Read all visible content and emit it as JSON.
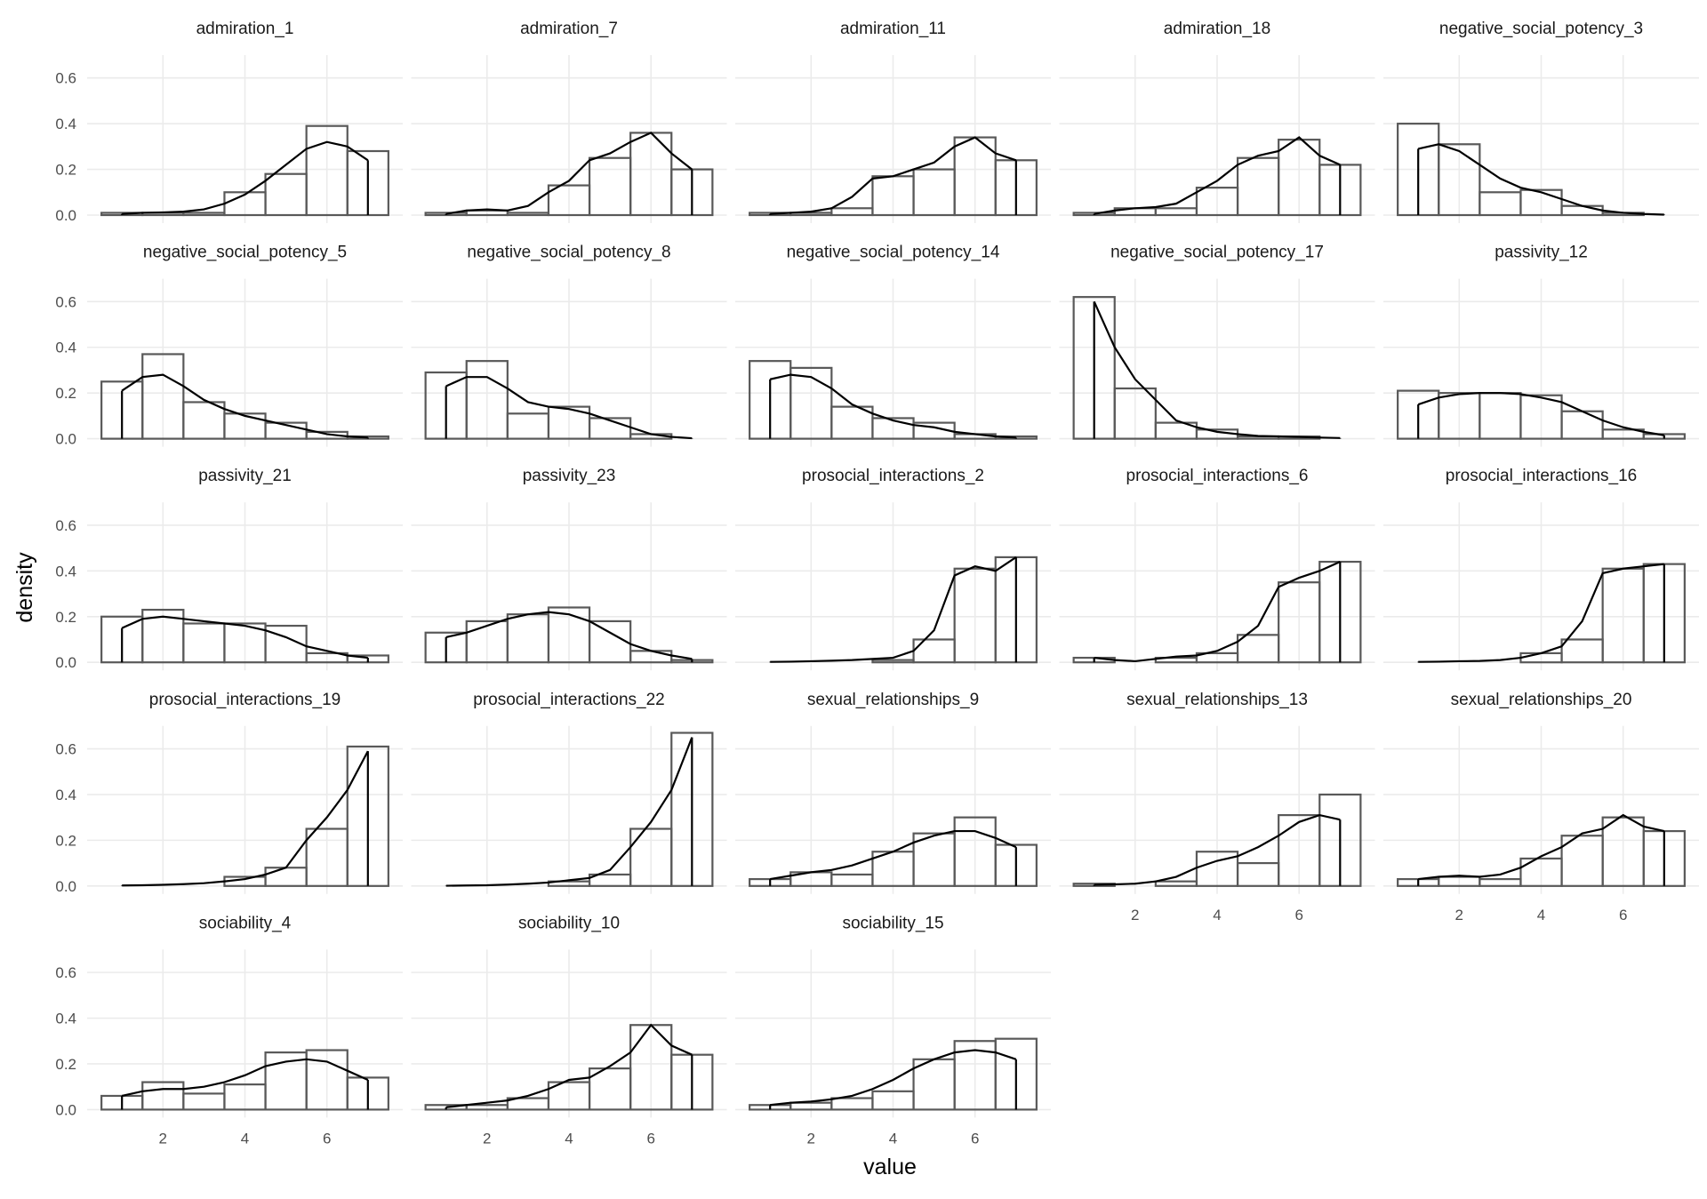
{
  "chart_data": {
    "type": "histogram",
    "xlabel": "value",
    "ylabel": "density",
    "xlim": [
      0.15,
      7.85
    ],
    "ylim": [
      -0.035,
      0.7
    ],
    "xticks": [
      2,
      4,
      6
    ],
    "yticks": [
      0.0,
      0.2,
      0.4,
      0.6
    ],
    "grid": true,
    "bar_color": "#595959",
    "line_color": "#000000",
    "bins": [
      0.5,
      1.5,
      2.5,
      3.5,
      4.5,
      5.5,
      6.5,
      7.5
    ],
    "density_x": [
      1,
      1.5,
      2,
      2.5,
      3,
      3.5,
      4,
      4.5,
      5,
      5.5,
      6,
      6.5,
      7
    ],
    "panels": [
      {
        "title": "admiration_1",
        "values": [
          0.01,
          0.01,
          0.01,
          0.1,
          0.18,
          0.39,
          0.28
        ],
        "density": [
          0.005,
          0.01,
          0.012,
          0.015,
          0.025,
          0.05,
          0.09,
          0.15,
          0.22,
          0.29,
          0.32,
          0.3,
          0.24
        ]
      },
      {
        "title": "admiration_7",
        "values": [
          0.01,
          0.02,
          0.01,
          0.13,
          0.25,
          0.36,
          0.2
        ],
        "density": [
          0.005,
          0.02,
          0.025,
          0.02,
          0.04,
          0.1,
          0.15,
          0.24,
          0.27,
          0.32,
          0.36,
          0.27,
          0.2
        ]
      },
      {
        "title": "admiration_11",
        "values": [
          0.01,
          0.01,
          0.03,
          0.17,
          0.2,
          0.34,
          0.24
        ],
        "density": [
          0.005,
          0.01,
          0.015,
          0.03,
          0.08,
          0.16,
          0.17,
          0.2,
          0.23,
          0.3,
          0.34,
          0.27,
          0.24
        ]
      },
      {
        "title": "admiration_18",
        "values": [
          0.01,
          0.03,
          0.03,
          0.12,
          0.25,
          0.33,
          0.22
        ],
        "density": [
          0.005,
          0.02,
          0.03,
          0.035,
          0.05,
          0.1,
          0.15,
          0.22,
          0.26,
          0.28,
          0.34,
          0.26,
          0.22
        ]
      },
      {
        "title": "negative_social_potency_3",
        "values": [
          0.4,
          0.31,
          0.1,
          0.11,
          0.04,
          0.01,
          0.0
        ],
        "density": [
          0.29,
          0.31,
          0.28,
          0.22,
          0.16,
          0.12,
          0.1,
          0.07,
          0.04,
          0.02,
          0.01,
          0.005,
          0.002
        ]
      },
      {
        "title": "negative_social_potency_5",
        "values": [
          0.25,
          0.37,
          0.16,
          0.11,
          0.07,
          0.03,
          0.01
        ],
        "density": [
          0.21,
          0.27,
          0.28,
          0.23,
          0.17,
          0.13,
          0.1,
          0.08,
          0.06,
          0.04,
          0.02,
          0.01,
          0.005
        ]
      },
      {
        "title": "negative_social_potency_8",
        "values": [
          0.29,
          0.34,
          0.11,
          0.14,
          0.09,
          0.02,
          0.0
        ],
        "density": [
          0.23,
          0.27,
          0.27,
          0.22,
          0.16,
          0.14,
          0.13,
          0.11,
          0.08,
          0.05,
          0.02,
          0.008,
          0.002
        ]
      },
      {
        "title": "negative_social_potency_14",
        "values": [
          0.34,
          0.31,
          0.14,
          0.09,
          0.07,
          0.02,
          0.01
        ],
        "density": [
          0.26,
          0.28,
          0.27,
          0.22,
          0.15,
          0.11,
          0.08,
          0.06,
          0.05,
          0.03,
          0.02,
          0.01,
          0.005
        ]
      },
      {
        "title": "negative_social_potency_17",
        "values": [
          0.62,
          0.22,
          0.07,
          0.04,
          0.01,
          0.01,
          0.0
        ],
        "density": [
          0.6,
          0.4,
          0.26,
          0.17,
          0.08,
          0.05,
          0.03,
          0.02,
          0.012,
          0.01,
          0.008,
          0.005,
          0.003
        ]
      },
      {
        "title": "passivity_12",
        "values": [
          0.21,
          0.2,
          0.2,
          0.19,
          0.12,
          0.04,
          0.02
        ],
        "density": [
          0.15,
          0.18,
          0.195,
          0.2,
          0.2,
          0.195,
          0.18,
          0.16,
          0.12,
          0.08,
          0.05,
          0.03,
          0.015
        ]
      },
      {
        "title": "passivity_21",
        "values": [
          0.2,
          0.23,
          0.17,
          0.17,
          0.16,
          0.04,
          0.03
        ],
        "density": [
          0.15,
          0.19,
          0.2,
          0.19,
          0.18,
          0.17,
          0.16,
          0.14,
          0.11,
          0.07,
          0.05,
          0.03,
          0.02
        ]
      },
      {
        "title": "passivity_23",
        "values": [
          0.13,
          0.18,
          0.21,
          0.24,
          0.18,
          0.05,
          0.01
        ],
        "density": [
          0.11,
          0.13,
          0.16,
          0.19,
          0.21,
          0.22,
          0.21,
          0.18,
          0.13,
          0.08,
          0.05,
          0.03,
          0.015
        ]
      },
      {
        "title": "prosocial_interactions_2",
        "values": [
          0.0,
          0.0,
          0.0,
          0.01,
          0.1,
          0.41,
          0.46
        ],
        "density": [
          0.002,
          0.003,
          0.005,
          0.007,
          0.01,
          0.015,
          0.02,
          0.05,
          0.14,
          0.38,
          0.42,
          0.4,
          0.46
        ]
      },
      {
        "title": "prosocial_interactions_6",
        "values": [
          0.02,
          0.0,
          0.02,
          0.04,
          0.12,
          0.35,
          0.44
        ],
        "density": [
          0.02,
          0.01,
          0.005,
          0.015,
          0.025,
          0.03,
          0.05,
          0.09,
          0.16,
          0.33,
          0.37,
          0.4,
          0.44
        ]
      },
      {
        "title": "prosocial_interactions_16",
        "values": [
          0.0,
          0.0,
          0.0,
          0.04,
          0.1,
          0.41,
          0.43
        ],
        "density": [
          0.002,
          0.003,
          0.005,
          0.006,
          0.01,
          0.02,
          0.04,
          0.07,
          0.18,
          0.39,
          0.41,
          0.42,
          0.43
        ]
      },
      {
        "title": "prosocial_interactions_19",
        "values": [
          0.0,
          0.0,
          0.0,
          0.04,
          0.08,
          0.25,
          0.61
        ],
        "density": [
          0.002,
          0.003,
          0.005,
          0.008,
          0.012,
          0.02,
          0.03,
          0.05,
          0.08,
          0.2,
          0.3,
          0.42,
          0.59
        ]
      },
      {
        "title": "prosocial_interactions_22",
        "values": [
          0.0,
          0.0,
          0.0,
          0.02,
          0.05,
          0.25,
          0.67
        ],
        "density": [
          0.001,
          0.002,
          0.003,
          0.006,
          0.01,
          0.015,
          0.025,
          0.035,
          0.07,
          0.17,
          0.28,
          0.42,
          0.65
        ]
      },
      {
        "title": "sexual_relationships_9",
        "values": [
          0.03,
          0.06,
          0.05,
          0.15,
          0.23,
          0.3,
          0.18
        ],
        "density": [
          0.03,
          0.045,
          0.06,
          0.07,
          0.09,
          0.12,
          0.15,
          0.19,
          0.22,
          0.24,
          0.24,
          0.21,
          0.17
        ]
      },
      {
        "title": "sexual_relationships_13",
        "values": [
          0.01,
          0.0,
          0.02,
          0.15,
          0.1,
          0.31,
          0.4
        ],
        "density": [
          0.005,
          0.007,
          0.01,
          0.02,
          0.04,
          0.08,
          0.11,
          0.13,
          0.17,
          0.22,
          0.28,
          0.31,
          0.29
        ]
      },
      {
        "title": "sexual_relationships_20",
        "values": [
          0.03,
          0.04,
          0.03,
          0.12,
          0.22,
          0.3,
          0.24
        ],
        "density": [
          0.03,
          0.04,
          0.045,
          0.04,
          0.05,
          0.08,
          0.13,
          0.17,
          0.23,
          0.25,
          0.31,
          0.26,
          0.24
        ]
      },
      {
        "title": "sociability_4",
        "values": [
          0.06,
          0.12,
          0.07,
          0.11,
          0.25,
          0.26,
          0.14
        ],
        "density": [
          0.06,
          0.08,
          0.09,
          0.09,
          0.1,
          0.12,
          0.15,
          0.19,
          0.21,
          0.22,
          0.21,
          0.17,
          0.13
        ]
      },
      {
        "title": "sociability_10",
        "values": [
          0.02,
          0.02,
          0.05,
          0.12,
          0.18,
          0.37,
          0.24
        ],
        "density": [
          0.01,
          0.02,
          0.03,
          0.04,
          0.06,
          0.09,
          0.13,
          0.14,
          0.19,
          0.25,
          0.37,
          0.28,
          0.24
        ]
      },
      {
        "title": "sociability_15",
        "values": [
          0.02,
          0.03,
          0.05,
          0.08,
          0.22,
          0.3,
          0.31
        ],
        "density": [
          0.02,
          0.03,
          0.035,
          0.045,
          0.06,
          0.09,
          0.13,
          0.18,
          0.22,
          0.25,
          0.26,
          0.25,
          0.22
        ]
      }
    ]
  }
}
